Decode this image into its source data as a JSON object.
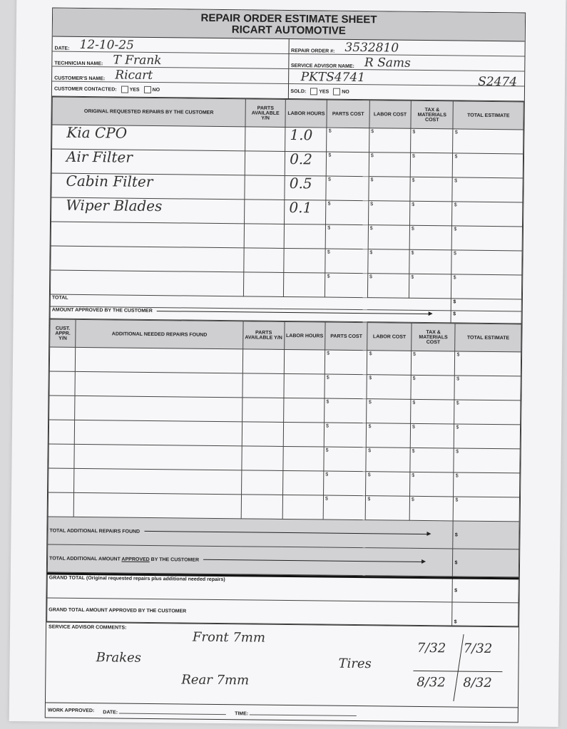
{
  "form": {
    "title": "REPAIR ORDER ESTIMATE SHEET",
    "company": "RICART AUTOMOTIVE",
    "labels": {
      "date": "DATE:",
      "technician": "TECHNICIAN NAME:",
      "customer": "CUSTOMER'S NAME:",
      "contacted": "CUSTOMER CONTACTED:",
      "yes": "YES",
      "no": "NO",
      "repair_order": "REPAIR ORDER #:",
      "service_advisor": "SERVICE ADVISOR NAME:",
      "sold": "SOLD:"
    },
    "values": {
      "date": "12-10-25",
      "technician": "T Frank",
      "customer": "Ricart",
      "repair_order": "3532810",
      "service_advisor": "R Sams",
      "vehicle_code": "PKTS4741",
      "amount": "S2474"
    }
  },
  "original": {
    "headers": [
      "ORIGINAL REQUESTED REPAIRS BY THE CUSTOMER",
      "PARTS AVAILABLE Y/N",
      "LABOR HOURS",
      "PARTS COST",
      "LABOR COST",
      "TAX & MATERIALS COST",
      "TOTAL ESTIMATE"
    ],
    "rows": [
      {
        "desc": "Kia CPO",
        "hours": "1.0"
      },
      {
        "desc": "Air Filter",
        "hours": "0.2"
      },
      {
        "desc": "Cabin Filter",
        "hours": "0.5"
      },
      {
        "desc": "Wiper Blades",
        "hours": "0.1"
      },
      {
        "desc": "",
        "hours": ""
      },
      {
        "desc": "",
        "hours": ""
      },
      {
        "desc": "",
        "hours": ""
      }
    ],
    "currency": "$",
    "total_label": "TOTAL",
    "approved_label": "AMOUNT APPROVED BY THE CUSTOMER"
  },
  "additional": {
    "headers": [
      "CUST. APPR. Y/N",
      "ADDITIONAL NEEDED REPAIRS FOUND",
      "PARTS AVAILABLE Y/N",
      "LABOR HOURS",
      "PARTS COST",
      "LABOR COST",
      "TAX & MATERIALS COST",
      "TOTAL ESTIMATE"
    ],
    "row_count": 7,
    "total_label": "TOTAL ADDITIONAL REPAIRS FOUND",
    "approved_label_pre": "TOTAL ADDITIONAL AMOUNT ",
    "approved_label_u": "APPROVED",
    "approved_label_post": " BY THE CUSTOMER"
  },
  "grand": {
    "total_label": "GRAND TOTAL (Original requested repairs plus additional needed repairs)",
    "approved_label": "GRAND TOTAL AMOUNT APPROVED BY THE CUSTOMER"
  },
  "comments": {
    "label": "SERVICE ADVISOR COMMENTS:",
    "brakes": "Brakes",
    "front": "Front 7mm",
    "rear": "Rear 7mm",
    "tires": "Tires",
    "t1": "7/32",
    "t2": "7/32",
    "t3": "8/32",
    "t4": "8/32"
  },
  "footer": {
    "work_approved": "WORK APPROVED:",
    "date": "DATE:",
    "time": "TIME:"
  }
}
